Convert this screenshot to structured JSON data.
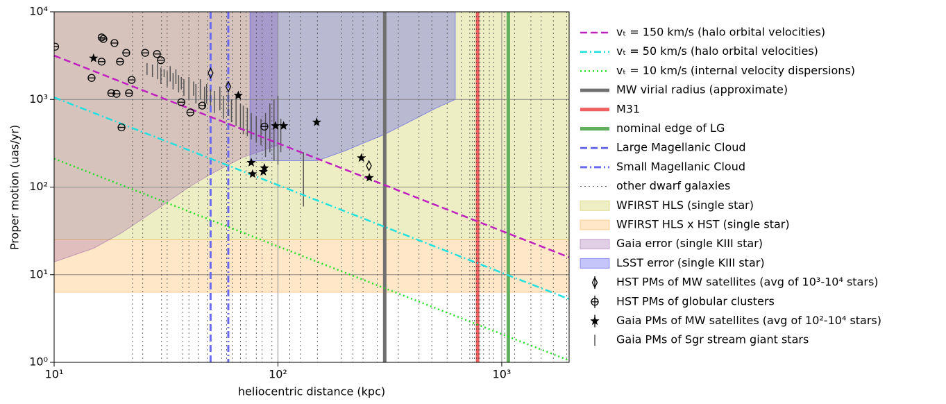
{
  "chart_data": {
    "type": "line",
    "xlabel": "heliocentric distance (kpc)",
    "ylabel": "Proper motion (uas/yr)",
    "xlim": [
      10,
      2000
    ],
    "ylim": [
      1,
      10000
    ],
    "log_x": true,
    "log_y": true,
    "grid": true,
    "xticks": [
      {
        "value": 10,
        "label": "10¹"
      },
      {
        "value": 100,
        "label": "10²"
      },
      {
        "value": 1000,
        "label": "10³"
      }
    ],
    "yticks": [
      {
        "value": 1,
        "label": "10⁰"
      },
      {
        "value": 10,
        "label": "10¹"
      },
      {
        "value": 100,
        "label": "10²"
      },
      {
        "value": 1000,
        "label": "10³"
      },
      {
        "value": 10000,
        "label": "10⁴"
      }
    ],
    "lines": [
      {
        "name": "vₜ = 150 km/s (halo orbital velocities)",
        "color": "#c020c0",
        "style": "dashed",
        "x": [
          10,
          2000
        ],
        "values": [
          3164,
          15.8
        ]
      },
      {
        "name": "vₜ = 50 km/s (halo orbital velocities)",
        "color": "#20e0e0",
        "style": "dashdot",
        "x": [
          10,
          2000
        ],
        "values": [
          1055,
          5.27
        ]
      },
      {
        "name": "vₜ = 10 km/s (internal velocity dispersions)",
        "color": "#20e020",
        "style": "dotted",
        "x": [
          10,
          2000
        ],
        "values": [
          211,
          1.05
        ]
      }
    ],
    "vlines": [
      {
        "name": "MW virial radius (approximate)",
        "color": "#707070",
        "style": "thick",
        "x": [
          300
        ]
      },
      {
        "name": "M31",
        "color": "#f06060",
        "style": "thick",
        "x": [
          780
        ]
      },
      {
        "name": "nominal edge of LG",
        "color": "#60b060",
        "style": "thick",
        "x": [
          1070
        ]
      },
      {
        "name": "Large Magellanic Cloud",
        "color": "#6a6af0",
        "style": "dashed",
        "x": [
          50
        ]
      },
      {
        "name": "Small Magellanic Cloud",
        "color": "#6a6af0",
        "style": "dashdot",
        "x": [
          60
        ]
      },
      {
        "name": "other dwarf galaxies",
        "color": "#404040",
        "style": "dotted",
        "x": [
          22.4,
          24.9,
          30.2,
          32,
          37.6,
          40,
          44,
          48.3,
          56,
          59,
          62.5,
          68,
          72,
          80,
          85,
          94,
          113,
          126,
          150,
          193,
          216,
          240,
          278,
          345,
          427,
          487,
          570,
          660,
          720,
          740,
          755,
          770,
          790,
          800,
          830,
          880,
          920,
          1030,
          1140,
          1350,
          1500,
          1700,
          1950
        ]
      }
    ],
    "regions": [
      {
        "name": "WFIRST HLS (single star)",
        "color": "#c8c840",
        "x": [
          10,
          2000
        ],
        "lower": [
          25,
          25
        ],
        "upper": [
          10000,
          10000
        ]
      },
      {
        "name": "WFIRST HLS x HST (single star)",
        "color": "#ffb04a",
        "x": [
          10,
          2000
        ],
        "lower": [
          6.3,
          6.3
        ],
        "upper": [
          25,
          25
        ]
      },
      {
        "name": "Gaia error (single KIII star)",
        "color": "#9b5fa8",
        "x": [
          10,
          15,
          20,
          30,
          40,
          50,
          70,
          100
        ],
        "lower": [
          14,
          20,
          30,
          60,
          100,
          140,
          220,
          300
        ],
        "upper": [
          10000,
          10000,
          10000,
          10000,
          10000,
          10000,
          10000,
          10000
        ]
      },
      {
        "name": "LSST error (single KIII star)",
        "color": "#4040f0",
        "x": [
          75,
          150,
          200,
          300,
          400,
          500,
          620
        ],
        "lower": [
          200,
          200,
          260,
          400,
          580,
          780,
          1000
        ],
        "upper": [
          10000,
          10000,
          10000,
          10000,
          10000,
          10000,
          10000
        ]
      }
    ],
    "points": [
      {
        "name": "HST PMs of MW satellites (avg of 10³-10⁴ stars)",
        "marker": "diamond",
        "color": "#000000",
        "x": [
          50,
          60,
          255
        ],
        "values": [
          2000,
          1400,
          175
        ]
      },
      {
        "name": "HST PMs of globular clusters",
        "marker": "circle",
        "color": "#000000",
        "x": [
          10.1,
          16.3,
          16.6,
          18.6,
          16.3,
          14.7,
          21,
          19.7,
          18,
          19,
          21.6,
          22.2,
          25.5,
          28.8,
          30,
          37,
          40.6,
          45.9,
          20,
          87
        ],
        "values": [
          4000,
          5100,
          4900,
          4400,
          2700,
          1760,
          3400,
          2700,
          1180,
          1160,
          1180,
          1670,
          3400,
          3300,
          2800,
          930,
          710,
          850,
          480,
          490
        ]
      },
      {
        "name": "Gaia PMs of MW satellites (avg of 10²-10⁴ stars)",
        "marker": "star",
        "color": "#000000",
        "x": [
          15,
          66.5,
          97.5,
          106,
          149,
          76,
          77,
          86,
          87,
          236,
          256
        ],
        "values": [
          2950,
          1110,
          500,
          500,
          550,
          190,
          141,
          150,
          165,
          215,
          128
        ]
      }
    ],
    "segments": [
      {
        "name": "Gaia PMs of Sgr stream giant stars",
        "color": "#555555",
        "x": [
          26,
          27.5,
          29,
          30,
          31,
          32,
          33,
          34,
          35,
          36,
          37,
          38,
          40,
          42,
          43,
          45,
          47,
          48,
          50,
          52,
          55,
          57,
          60,
          62,
          65,
          68,
          70,
          73,
          76,
          80,
          84,
          88,
          92,
          96,
          100,
          103,
          130
        ],
        "low": [
          1900,
          1800,
          1700,
          1500,
          1800,
          1400,
          1600,
          1300,
          1500,
          1200,
          1300,
          1100,
          1000,
          1100,
          900,
          1000,
          800,
          900,
          850,
          700,
          750,
          600,
          650,
          550,
          500,
          450,
          400,
          380,
          350,
          320,
          300,
          220,
          250,
          200,
          180,
          250,
          60
        ],
        "high": [
          2600,
          2500,
          2600,
          2300,
          2200,
          2100,
          2400,
          2000,
          2200,
          1900,
          1800,
          1700,
          1800,
          1600,
          1500,
          1700,
          1400,
          1500,
          1300,
          1250,
          1400,
          1100,
          1200,
          1000,
          1100,
          900,
          850,
          800,
          700,
          650,
          600,
          700,
          900,
          1000,
          1100,
          600,
          250
        ]
      }
    ]
  }
}
